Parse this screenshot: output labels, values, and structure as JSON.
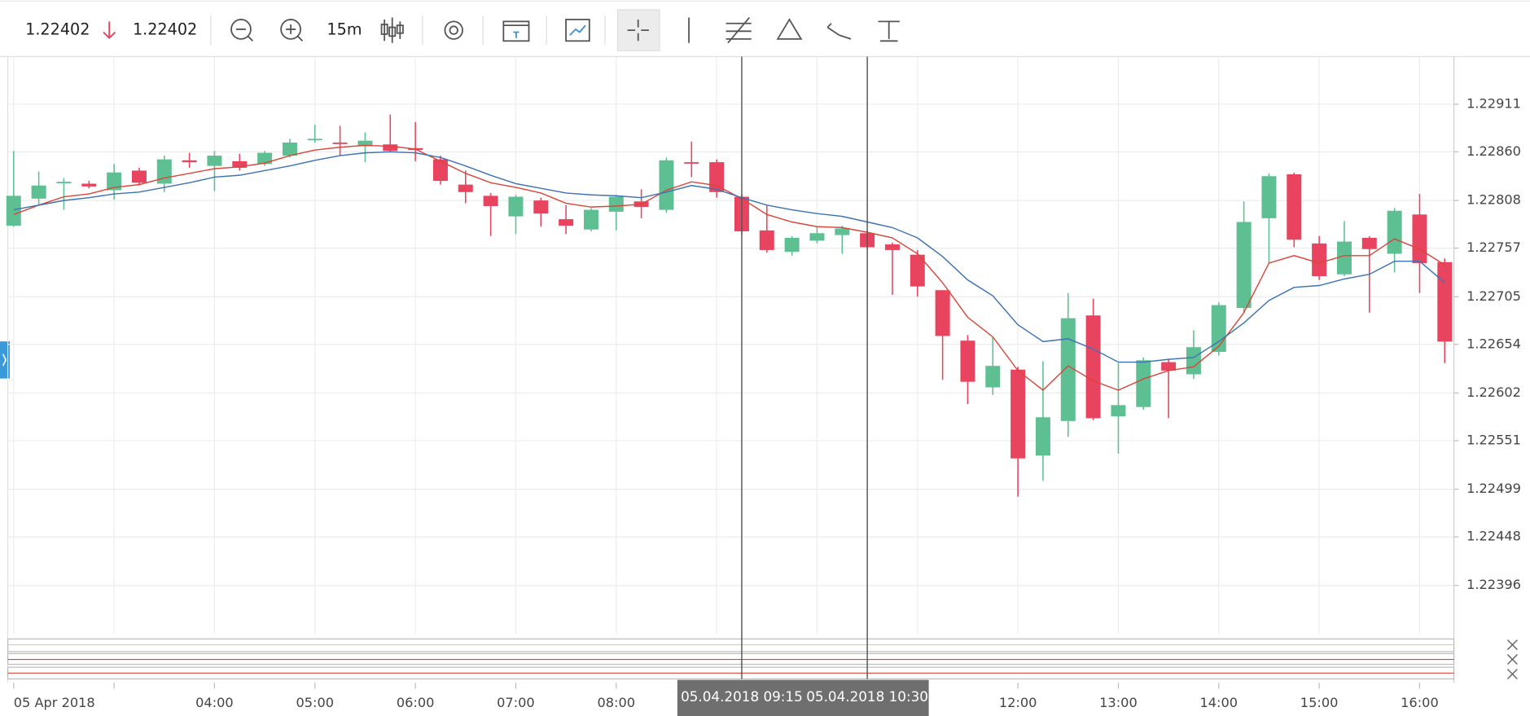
{
  "toolbar": {
    "bid": "1.22402",
    "ask": "1.22402",
    "interval": "15m"
  },
  "chart_data": {
    "type": "candlestick",
    "categories": [
      "05 Apr 2018",
      null,
      null,
      null,
      null,
      null,
      null,
      null,
      "04:00",
      null,
      null,
      null,
      "05:00",
      null,
      null,
      null,
      "06:00",
      null,
      null,
      null,
      "07:00",
      null,
      null,
      null,
      "08:00",
      null,
      null,
      null,
      null,
      null,
      null,
      null,
      null,
      null,
      null,
      null,
      null,
      null,
      null,
      null,
      "12:00",
      null,
      null,
      null,
      "13:00",
      null,
      null,
      null,
      "14:00",
      null,
      null,
      null,
      "15:00",
      null,
      null,
      null,
      "16:00",
      null
    ],
    "open": [
      1.22781,
      1.2281,
      1.22827,
      1.22826,
      1.22819,
      1.2284,
      1.22826,
      1.22851,
      1.22845,
      1.2285,
      1.22847,
      1.22856,
      1.22873,
      1.2287,
      1.22866,
      1.22868,
      1.22864,
      1.22852,
      1.22825,
      1.22813,
      1.22791,
      1.22808,
      1.22788,
      1.22777,
      1.22796,
      1.22807,
      1.22798,
      1.22849,
      1.22849,
      1.22812,
      1.22776,
      1.22753,
      1.22765,
      1.22771,
      1.22773,
      1.22761,
      1.2275,
      1.22712,
      1.22658,
      1.22608,
      1.22627,
      1.22535,
      1.22572,
      1.22685,
      1.22577,
      1.22587,
      1.22635,
      1.22622,
      1.22646,
      1.22693,
      1.22789,
      1.22836,
      1.22762,
      1.22729,
      1.22768,
      1.22751,
      1.22793,
      1.22742
    ],
    "high": [
      1.22861,
      1.22839,
      1.22832,
      1.22829,
      1.22847,
      1.22843,
      1.22856,
      1.22859,
      1.22861,
      1.22858,
      1.22861,
      1.22874,
      1.22889,
      1.22888,
      1.22881,
      1.229,
      1.22892,
      1.22856,
      1.2284,
      1.22816,
      1.22814,
      1.22811,
      1.22803,
      1.228,
      1.22814,
      1.2282,
      1.22854,
      1.22871,
      1.22852,
      1.22815,
      1.22803,
      1.2277,
      1.2278,
      1.22781,
      1.22776,
      1.22763,
      1.22755,
      1.22712,
      1.22664,
      1.22662,
      1.2263,
      1.22636,
      1.22709,
      1.22703,
      1.22634,
      1.2264,
      1.22638,
      1.22669,
      1.22699,
      1.22807,
      1.22837,
      1.22838,
      1.2277,
      1.22786,
      1.2277,
      1.228,
      1.22815,
      1.22746
    ],
    "low": [
      1.2278,
      1.22803,
      1.22798,
      1.22821,
      1.22809,
      1.22824,
      1.22817,
      1.22843,
      1.22818,
      1.2284,
      1.22845,
      1.22854,
      1.2287,
      1.22856,
      1.22849,
      1.2286,
      1.2285,
      1.22825,
      1.22805,
      1.2277,
      1.22772,
      1.2278,
      1.22772,
      1.22775,
      1.22776,
      1.22789,
      1.22795,
      1.22833,
      1.22811,
      1.22772,
      1.22752,
      1.22749,
      1.22762,
      1.22751,
      1.22756,
      1.22707,
      1.22705,
      1.22616,
      1.2259,
      1.226,
      1.22491,
      1.22508,
      1.22555,
      1.22573,
      1.22537,
      1.22584,
      1.22575,
      1.22617,
      1.22642,
      1.22688,
      1.22741,
      1.22758,
      1.22723,
      1.22727,
      1.22688,
      1.22731,
      1.22709,
      1.22634
    ],
    "close": [
      1.22813,
      1.22824,
      1.22828,
      1.22823,
      1.22838,
      1.22827,
      1.22852,
      1.22849,
      1.22856,
      1.22843,
      1.22859,
      1.2287,
      1.22874,
      1.22869,
      1.22872,
      1.22861,
      1.22862,
      1.22829,
      1.22817,
      1.22802,
      1.22812,
      1.22794,
      1.22781,
      1.22798,
      1.22812,
      1.22801,
      1.22851,
      1.22848,
      1.22817,
      1.22775,
      1.22755,
      1.22768,
      1.22773,
      1.22778,
      1.22758,
      1.22755,
      1.22716,
      1.22663,
      1.22614,
      1.22631,
      1.22532,
      1.22576,
      1.22682,
      1.22575,
      1.22589,
      1.22637,
      1.22626,
      1.22651,
      1.22696,
      1.22785,
      1.22834,
      1.22766,
      1.22727,
      1.22764,
      1.22756,
      1.22797,
      1.22741,
      1.22657
    ],
    "up_color": "#5dbf92",
    "down_color": "#e8445f",
    "overlays": [
      {
        "color": "#d9463b",
        "values": [
          1.22793,
          1.22803,
          1.22812,
          1.22815,
          1.22822,
          1.22825,
          1.22832,
          1.22837,
          1.22842,
          1.22844,
          1.22848,
          1.22856,
          1.22862,
          1.22865,
          1.22867,
          1.22866,
          1.22863,
          1.2285,
          1.22837,
          1.22827,
          1.22822,
          1.22816,
          1.22805,
          1.22801,
          1.22802,
          1.22804,
          1.22819,
          1.22828,
          1.22824,
          1.2281,
          1.22793,
          1.22785,
          1.2278,
          1.22779,
          1.22774,
          1.22768,
          1.22751,
          1.2272,
          1.22683,
          1.22662,
          1.22626,
          1.22605,
          1.22631,
          1.22615,
          1.22605,
          1.22617,
          1.22626,
          1.2263,
          1.22652,
          1.22688,
          1.22741,
          1.22749,
          1.22741,
          1.22749,
          1.22749,
          1.22767,
          1.22756,
          1.22739
        ]
      },
      {
        "color": "#3d72b4",
        "values": [
          1.22798,
          1.22803,
          1.22808,
          1.22811,
          1.22815,
          1.22817,
          1.22822,
          1.22827,
          1.22833,
          1.22835,
          1.2284,
          1.22845,
          1.22851,
          1.22856,
          1.22859,
          1.2286,
          1.22859,
          1.22854,
          1.22845,
          1.22835,
          1.22826,
          1.22821,
          1.22816,
          1.22814,
          1.22813,
          1.22811,
          1.22817,
          1.22824,
          1.2282,
          1.22811,
          1.22803,
          1.22798,
          1.22794,
          1.22791,
          1.22785,
          1.22779,
          1.22768,
          1.22748,
          1.22723,
          1.22706,
          1.22675,
          1.22657,
          1.2266,
          1.22649,
          1.22635,
          1.22635,
          1.22638,
          1.2264,
          1.22657,
          1.22677,
          1.22701,
          1.22715,
          1.22717,
          1.22724,
          1.22729,
          1.22743,
          1.22743,
          1.2272
        ]
      }
    ],
    "ylim": [
      1.22344,
      1.22962
    ],
    "yticks": [
      1.22911,
      {
        "value": 1.2286,
        "label": "1.22860"
      },
      1.22808,
      1.22757,
      1.22705,
      1.22654,
      1.22602,
      1.22551,
      1.22499,
      1.22448,
      1.22396
    ],
    "grid": true,
    "crosshairs": [
      {
        "label": "05.04.2018 09:15",
        "index": 29
      },
      {
        "label": "05.04.2018 10:30",
        "index": 34
      }
    ]
  }
}
